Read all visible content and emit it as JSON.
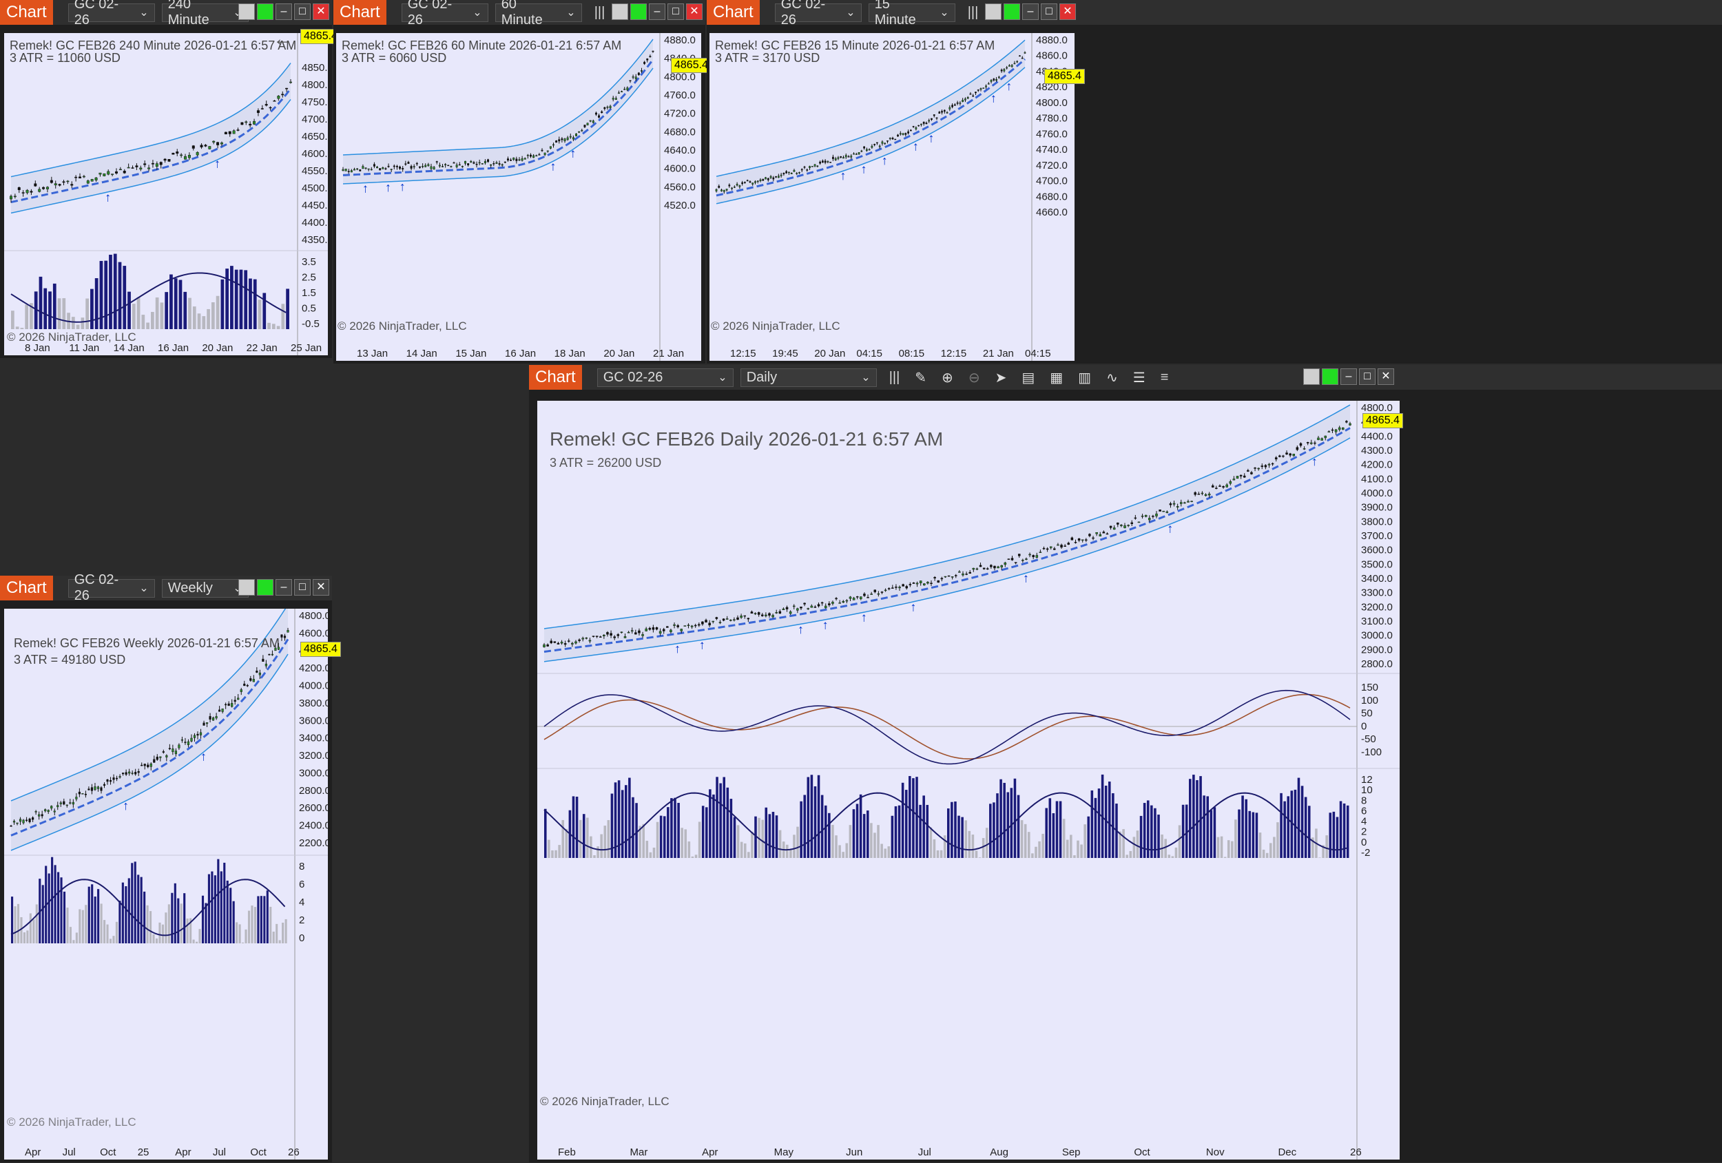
{
  "common": {
    "chart_tab": "Chart",
    "instrument": "GC 02-26",
    "last_price": "4865.4",
    "copyright": "© 2026 NinjaTrader, LLC"
  },
  "win240": {
    "interval": "240 Minute",
    "header": "Remek!  GC FEB26  240 Minute  2026-01-21 6:57 AM",
    "atr": "3 ATR = 11060 USD",
    "price_ticks": [
      "4850.0",
      "4800.0",
      "4750.0",
      "4700.0",
      "4650.0",
      "4600.0",
      "4550.0",
      "4500.0",
      "4450.0",
      "4400.0",
      "4350.0"
    ],
    "ind_ticks": [
      "3.5",
      "2.5",
      "1.5",
      "0.5",
      "-0.5"
    ],
    "dates": [
      "8 Jan",
      "11 Jan",
      "14 Jan",
      "16 Jan",
      "20 Jan",
      "22 Jan",
      "25 Jan"
    ]
  },
  "win60": {
    "interval": "60 Minute",
    "header": "Remek!  GC FEB26  60 Minute  2026-01-21 6:57 AM",
    "atr": "3 ATR = 6060 USD",
    "price_ticks": [
      "4880.0",
      "4840.0",
      "4800.0",
      "4760.0",
      "4720.0",
      "4680.0",
      "4640.0",
      "4600.0",
      "4560.0",
      "4520.0"
    ],
    "dates": [
      "13 Jan",
      "14 Jan",
      "15 Jan",
      "16 Jan",
      "18 Jan",
      "20 Jan",
      "21 Jan"
    ]
  },
  "win15": {
    "interval": "15 Minute",
    "header": "Remek!  GC FEB26  15 Minute  2026-01-21 6:57 AM",
    "atr": "3 ATR = 3170 USD",
    "price_ticks": [
      "4880.0",
      "4860.0",
      "4840.0",
      "4820.0",
      "4800.0",
      "4780.0",
      "4760.0",
      "4740.0",
      "4720.0",
      "4700.0",
      "4680.0",
      "4660.0"
    ],
    "dates": [
      "12:15",
      "19:45",
      "20 Jan",
      "04:15",
      "08:15",
      "12:15",
      "21 Jan",
      "04:15"
    ]
  },
  "winW": {
    "interval": "Weekly",
    "header": "Remek!  GC FEB26  Weekly  2026-01-21 6:57 AM",
    "atr": "3 ATR = 49180 USD",
    "price_ticks": [
      "4800.0",
      "4600.0",
      "4400.0",
      "4200.0",
      "4000.0",
      "3800.0",
      "3600.0",
      "3400.0",
      "3200.0",
      "3000.0",
      "2800.0",
      "2600.0",
      "2400.0",
      "2200.0"
    ],
    "ind_ticks": [
      "8",
      "6",
      "4",
      "2",
      "0"
    ],
    "dates": [
      "Apr",
      "Jul",
      "Oct",
      "25",
      "Apr",
      "Jul",
      "Oct",
      "26"
    ]
  },
  "winD": {
    "interval": "Daily",
    "header": "Remek!  GC FEB26  Daily  2026-01-21 6:57 AM",
    "atr": "3 ATR = 26200 USD",
    "price_ticks": [
      "4800.0",
      "4600.0",
      "4400.0",
      "4300.0",
      "4200.0",
      "4100.0",
      "4000.0",
      "3900.0",
      "3800.0",
      "3700.0",
      "3600.0",
      "3500.0",
      "3400.0",
      "3300.0",
      "3200.0",
      "3100.0",
      "3000.0",
      "2900.0",
      "2800.0"
    ],
    "osc_ticks": [
      "150",
      "100",
      "50",
      "0",
      "-50",
      "-100"
    ],
    "ind_ticks": [
      "12",
      "10",
      "8",
      "6",
      "4",
      "2",
      "0",
      "-2"
    ],
    "dates": [
      "Feb",
      "Mar",
      "Apr",
      "May",
      "Jun",
      "Jul",
      "Aug",
      "Sep",
      "Oct",
      "Nov",
      "Dec",
      "26"
    ]
  },
  "colors": {
    "bg": "#e8e8fb",
    "chart_tab": "#e0521b",
    "price_tag": "#f7f700",
    "band": "#3399dd",
    "ma": "#3a66d6",
    "bars": "#1a1a7a",
    "signal": "#0033cc"
  }
}
